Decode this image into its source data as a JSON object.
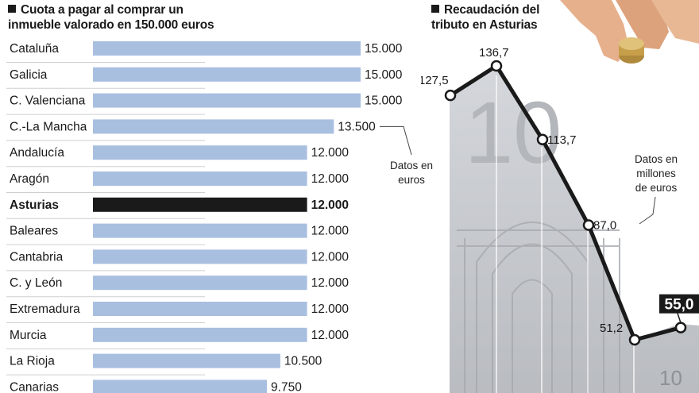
{
  "left_panel": {
    "title_line1": "Cuota a pagar al comprar un",
    "title_line2": "inmueble valorado en 150.000 euros",
    "note_line1": "Datos en",
    "note_line2": "euros"
  },
  "right_panel": {
    "title_line1": "Recaudación del",
    "title_line2": "tributo en Asturias",
    "note_line1": "Datos en",
    "note_line2": "millones",
    "note_line3": "de euros"
  },
  "colors": {
    "bar": "#a9bfe0",
    "highlight_bar": "#1a1a1a",
    "line": "#1a1a1a",
    "photo_tint": "#c9ccd0"
  },
  "chart_data": [
    {
      "type": "bar",
      "orientation": "horizontal",
      "categories": [
        "Cataluña",
        "Galicia",
        "C. Valenciana",
        "C.-La Mancha",
        "Andalucía",
        "Aragón",
        "Asturias",
        "Baleares",
        "Cantabria",
        "C. y León",
        "Extremadura",
        "Murcia",
        "La Rioja",
        "Canarias"
      ],
      "values": [
        15000,
        15000,
        15000,
        13500,
        12000,
        12000,
        12000,
        12000,
        12000,
        12000,
        12000,
        12000,
        10500,
        9750
      ],
      "value_labels": [
        "15.000",
        "15.000",
        "15.000",
        "13.500",
        "12.000",
        "12.000",
        "12.000",
        "12.000",
        "12.000",
        "12.000",
        "12.000",
        "12.000",
        "10.500",
        "9.750"
      ],
      "highlight": "Asturias",
      "xlim": [
        0,
        15000
      ],
      "grid": false
    },
    {
      "type": "line",
      "values": [
        127.5,
        136.7,
        113.7,
        87.0,
        51.2,
        55.0
      ],
      "value_labels": [
        "127,5",
        "136,7",
        "113,7",
        "87,0",
        "51,2",
        "55,0"
      ],
      "highlight_last": true,
      "ylim": [
        40,
        140
      ],
      "grid": false
    }
  ]
}
